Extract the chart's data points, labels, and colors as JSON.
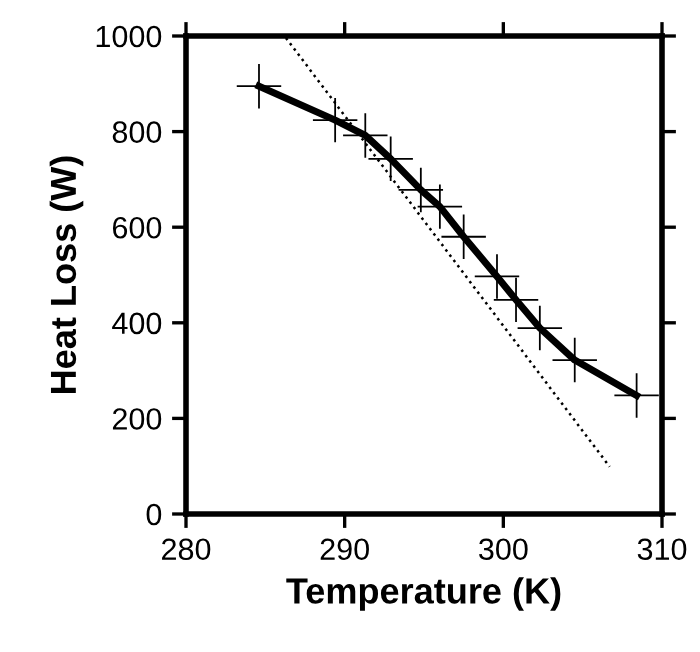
{
  "chart_data": {
    "type": "line",
    "xlabel": "Temperature (K)",
    "ylabel": "Heat Loss (W)",
    "xlim": [
      280,
      310
    ],
    "xticks": [
      280,
      290,
      300,
      310
    ],
    "ylim": [
      0,
      1000
    ],
    "yticks": [
      0,
      200,
      400,
      600,
      800,
      1000
    ],
    "grid": false,
    "legend": false,
    "series": [
      {
        "color": "#000000",
        "marker": "cross",
        "line_style": "solid",
        "x": [
          284.6,
          289.4,
          291.3,
          292.9,
          294.8,
          296.0,
          297.5,
          299.6,
          300.8,
          302.3,
          304.5,
          308.4
        ],
        "values": [
          895,
          824,
          792,
          743,
          678,
          643,
          580,
          497,
          448,
          389,
          322,
          248
        ]
      },
      {
        "color": "#000000",
        "marker": "none",
        "line_style": "dotted",
        "x": [
          286.3,
          306.7
        ],
        "values": [
          996,
          99
        ]
      }
    ]
  }
}
